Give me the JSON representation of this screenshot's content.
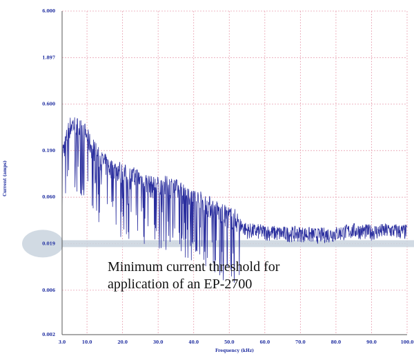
{
  "chart_data": {
    "type": "line",
    "title": "",
    "xlabel": "Frequency (kHz)",
    "ylabel": "Current (amps)",
    "x_ticks": [
      "3.0",
      "10.0",
      "20.0",
      "30.0",
      "40.0",
      "50.0",
      "60.0",
      "70.0",
      "80.0",
      "90.0",
      "100.0"
    ],
    "y_ticks": [
      "6.000",
      "1.897",
      "0.600",
      "0.190",
      "0.060",
      "0.019",
      "0.006",
      "0.002"
    ],
    "y_scale": "log",
    "xlim": [
      3,
      100
    ],
    "ylim": [
      0.002,
      6
    ],
    "grid": true,
    "series": [
      {
        "values": [
          [
            3.0,
            0.18
          ],
          [
            4.0,
            0.24
          ],
          [
            5.0,
            0.34
          ],
          [
            6.0,
            0.37
          ],
          [
            7.0,
            0.35
          ],
          [
            8.0,
            0.33
          ],
          [
            9.0,
            0.32
          ],
          [
            10.0,
            0.27
          ],
          [
            11.0,
            0.22
          ],
          [
            12.0,
            0.2
          ],
          [
            13.0,
            0.17
          ],
          [
            14.0,
            0.15
          ],
          [
            15.0,
            0.14
          ],
          [
            16.0,
            0.13
          ],
          [
            17.0,
            0.12
          ],
          [
            18.0,
            0.12
          ],
          [
            19.0,
            0.12
          ],
          [
            20.0,
            0.11
          ],
          [
            22.0,
            0.1
          ],
          [
            24.0,
            0.1
          ],
          [
            26.0,
            0.09
          ],
          [
            28.0,
            0.08
          ],
          [
            30.0,
            0.08
          ],
          [
            32.0,
            0.08
          ],
          [
            34.0,
            0.08
          ],
          [
            36.0,
            0.07
          ],
          [
            38.0,
            0.07
          ],
          [
            40.0,
            0.06
          ],
          [
            42.0,
            0.055
          ],
          [
            44.0,
            0.05
          ],
          [
            46.0,
            0.045
          ],
          [
            48.0,
            0.04
          ],
          [
            50.0,
            0.038
          ],
          [
            52.0,
            0.035
          ],
          [
            53.0,
            0.03
          ],
          [
            55.0,
            0.026
          ],
          [
            60.0,
            0.025
          ],
          [
            65.0,
            0.024
          ],
          [
            70.0,
            0.024
          ],
          [
            75.0,
            0.023
          ],
          [
            80.0,
            0.024
          ],
          [
            85.0,
            0.026
          ],
          [
            90.0,
            0.025
          ],
          [
            95.0,
            0.026
          ],
          [
            100.0,
            0.025
          ]
        ]
      }
    ],
    "threshold": {
      "value": 0.019,
      "color": "#c9d3de"
    },
    "annotation": "Minimum current threshold for application of an EP-2700",
    "colors": {
      "line": "#2a2e9e",
      "grid": "#e8a0b0",
      "axis_text": "#1b2a9e"
    }
  }
}
